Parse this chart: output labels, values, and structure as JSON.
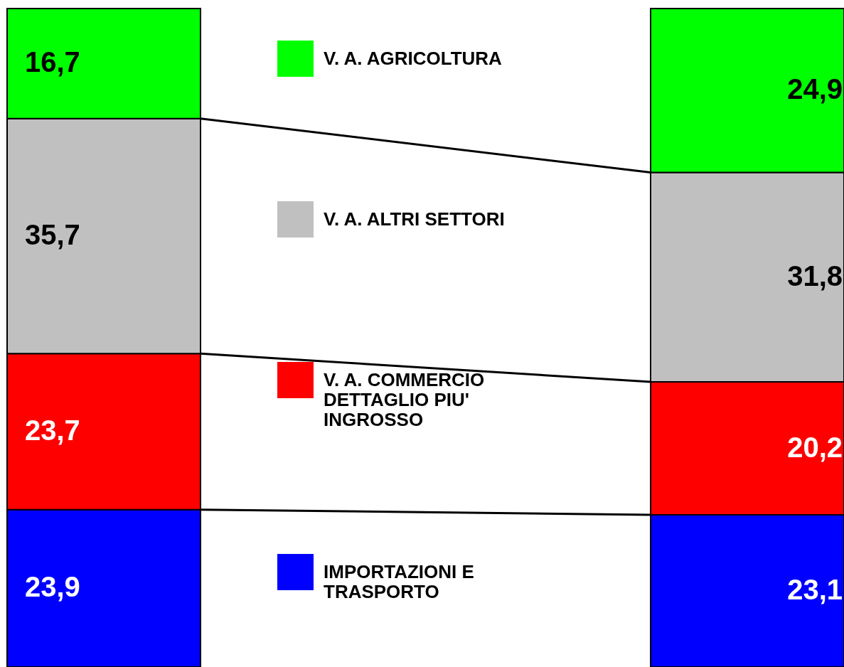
{
  "chart_data": {
    "type": "bar",
    "stacked": true,
    "categories": [
      null,
      null
    ],
    "legend": "center",
    "series": [
      {
        "name": "IMPORTAZIONI E TRASPORTO",
        "color": "#0000ff",
        "values": [
          23.9,
          23.1
        ],
        "value_labels": [
          "23,9",
          "23,1"
        ]
      },
      {
        "name": "V. A. COMMERCIO DETTAGLIO PIU' INGROSSO",
        "color": "#ff0000",
        "values": [
          23.7,
          20.2
        ],
        "value_labels": [
          "23,7",
          "20,2"
        ]
      },
      {
        "name": "V. A. ALTRI SETTORI",
        "color": "#c0c0c0",
        "values": [
          35.7,
          31.8
        ],
        "value_labels": [
          "35,7",
          "31,8"
        ]
      },
      {
        "name": "V. A. AGRICOLTURA",
        "color": "#00ff00",
        "values": [
          16.7,
          24.9
        ],
        "value_labels": [
          "16,7",
          "24,9"
        ]
      }
    ]
  }
}
